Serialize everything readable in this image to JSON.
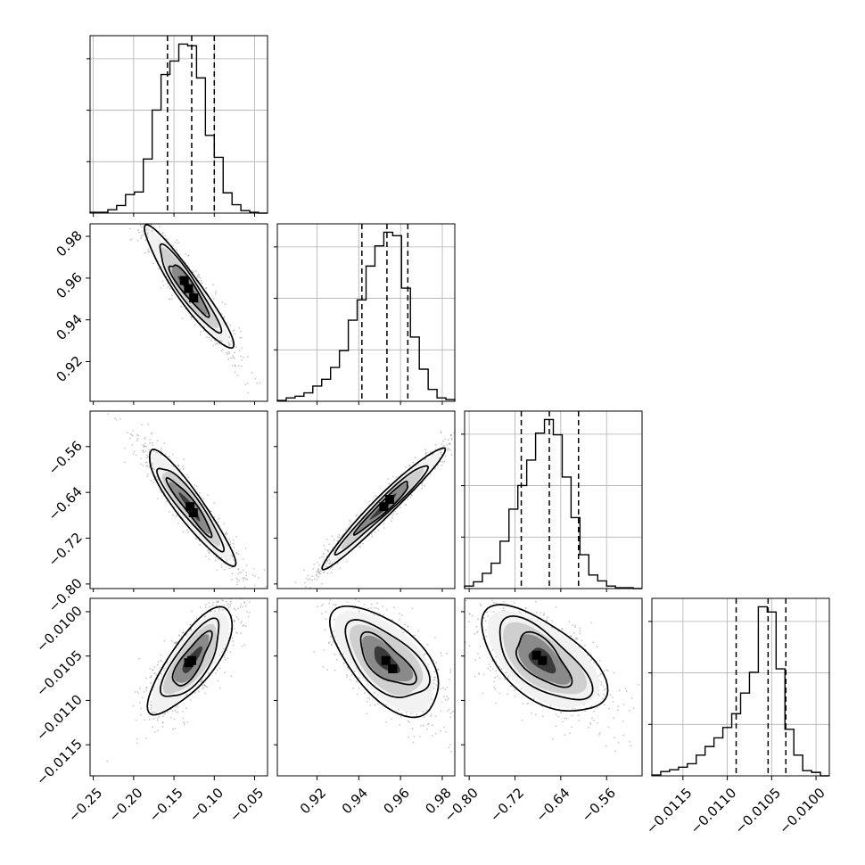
{
  "chart_data": {
    "type": "corner",
    "grid": true,
    "colors": {
      "line": "#000000",
      "grid": "#b0b0b0",
      "points": "#999999",
      "density_fill": "#404040"
    },
    "parameters": [
      {
        "ticks": [
          -0.25,
          -0.2,
          -0.15,
          -0.1,
          -0.05
        ],
        "tick_labels": [
          "−0.25",
          "−0.20",
          "−0.15",
          "−0.10",
          "−0.05"
        ],
        "range": [
          -0.254,
          -0.034
        ]
      },
      {
        "ticks": [
          0.92,
          0.94,
          0.96,
          0.98
        ],
        "tick_labels": [
          "0.92",
          "0.94",
          "0.96",
          "0.98"
        ],
        "range": [
          0.901,
          0.986
        ]
      },
      {
        "ticks": [
          -0.8,
          -0.72,
          -0.64,
          -0.56
        ],
        "tick_labels": [
          "−0.80",
          "−0.72",
          "−0.64",
          "−0.56"
        ],
        "range": [
          -0.808,
          -0.498
        ]
      },
      {
        "ticks": [
          -0.0115,
          -0.011,
          -0.0105,
          -0.01
        ],
        "tick_labels": [
          "−0.0115",
          "−0.0110",
          "−0.0105",
          "−0.0100"
        ],
        "range": [
          -0.01185,
          -0.00985
        ]
      }
    ],
    "histograms": [
      {
        "edges": [
          -0.254,
          -0.243,
          -0.232,
          -0.221,
          -0.21,
          -0.199,
          -0.188,
          -0.177,
          -0.166,
          -0.155,
          -0.144,
          -0.133,
          -0.122,
          -0.111,
          -0.1,
          -0.089,
          -0.078,
          -0.067,
          -0.056,
          -0.045,
          -0.034
        ],
        "counts": [
          0.005,
          0.005,
          0.02,
          0.045,
          0.11,
          0.125,
          0.32,
          0.61,
          0.82,
          0.9,
          1.0,
          0.99,
          0.8,
          0.46,
          0.33,
          0.12,
          0.05,
          0.015,
          0.005,
          0.0
        ],
        "quantiles": [
          -0.158,
          -0.128,
          -0.1
        ]
      },
      {
        "edges": [
          0.901,
          0.90525,
          0.9095,
          0.91375,
          0.918,
          0.92225,
          0.9265,
          0.93075,
          0.935,
          0.93925,
          0.9435,
          0.94775,
          0.952,
          0.95625,
          0.9605,
          0.96475,
          0.969,
          0.97325,
          0.9775,
          0.98175,
          0.986
        ],
        "counts": [
          0.005,
          0.02,
          0.03,
          0.05,
          0.09,
          0.13,
          0.2,
          0.3,
          0.48,
          0.6,
          0.8,
          0.92,
          1.0,
          0.98,
          0.67,
          0.38,
          0.19,
          0.07,
          0.02,
          0.01
        ],
        "quantiles": [
          0.9415,
          0.9535,
          0.9635
        ]
      },
      {
        "edges": [
          -0.808,
          -0.7925,
          -0.777,
          -0.7615,
          -0.746,
          -0.7305,
          -0.715,
          -0.6995,
          -0.684,
          -0.6685,
          -0.653,
          -0.6375,
          -0.622,
          -0.6065,
          -0.591,
          -0.5755,
          -0.56,
          -0.5445,
          -0.529,
          -0.5135,
          -0.498
        ],
        "counts": [
          0.015,
          0.04,
          0.09,
          0.15,
          0.28,
          0.47,
          0.61,
          0.76,
          0.92,
          1.0,
          0.91,
          0.66,
          0.42,
          0.2,
          0.08,
          0.045,
          0.015,
          0.005,
          0.005,
          0.0
        ],
        "quantiles": [
          -0.709,
          -0.66,
          -0.609
        ]
      },
      {
        "edges": [
          -0.01185,
          -0.01175,
          -0.01165,
          -0.01155,
          -0.01145,
          -0.01135,
          -0.01125,
          -0.01115,
          -0.01105,
          -0.01095,
          -0.01085,
          -0.01075,
          -0.01065,
          -0.01055,
          -0.01045,
          -0.01035,
          -0.01025,
          -0.01015,
          -0.01005,
          -0.00995,
          -0.00985
        ],
        "counts": [
          0.005,
          0.025,
          0.035,
          0.05,
          0.07,
          0.12,
          0.17,
          0.22,
          0.28,
          0.36,
          0.48,
          0.6,
          0.98,
          0.95,
          0.62,
          0.27,
          0.12,
          0.03,
          0.02,
          0.0
        ],
        "quantiles": [
          -0.0109,
          -0.01054,
          -0.01034
        ]
      }
    ],
    "pairs": [
      {
        "x": 0,
        "y": 1,
        "center": [
          -0.132,
          0.955
        ],
        "sd": [
          0.026,
          0.0138
        ],
        "corr": -0.93,
        "peak_offsets": [
          [
            0.0,
            0.0
          ],
          [
            0.5,
            -0.5
          ],
          [
            -0.4,
            0.5
          ]
        ]
      },
      {
        "x": 0,
        "y": 2,
        "center": [
          -0.13,
          -0.665
        ],
        "sd": [
          0.027,
          0.05
        ],
        "corr": -0.93,
        "peak_offsets": [
          [
            0.0,
            0.0
          ],
          [
            0.3,
            -0.4
          ]
        ]
      },
      {
        "x": 1,
        "y": 2,
        "center": [
          0.952,
          -0.665
        ],
        "sd": [
          0.014,
          0.05
        ],
        "corr": 0.97,
        "peak_offsets": [
          [
            0.0,
            0.0
          ],
          [
            0.4,
            0.5
          ]
        ]
      },
      {
        "x": 0,
        "y": 3,
        "center": [
          -0.128,
          -0.01055
        ],
        "sd": [
          0.025,
          0.0003
        ],
        "corr": 0.78,
        "peak_offsets": [
          [
            0.0,
            0.0
          ],
          [
            -0.3,
            0.1
          ]
        ]
      },
      {
        "x": 1,
        "y": 3,
        "center": [
          0.953,
          -0.01055
        ],
        "sd": [
          0.013,
          0.0003
        ],
        "corr": -0.62,
        "peak_offsets": [
          [
            0.0,
            0.0
          ],
          [
            0.5,
            -0.4
          ]
        ]
      },
      {
        "x": 2,
        "y": 3,
        "center": [
          -0.672,
          -0.01055
        ],
        "sd": [
          0.052,
          0.0003
        ],
        "corr": -0.6,
        "peak_offsets": [
          [
            0.0,
            0.0
          ],
          [
            -0.4,
            0.2
          ]
        ]
      }
    ]
  }
}
